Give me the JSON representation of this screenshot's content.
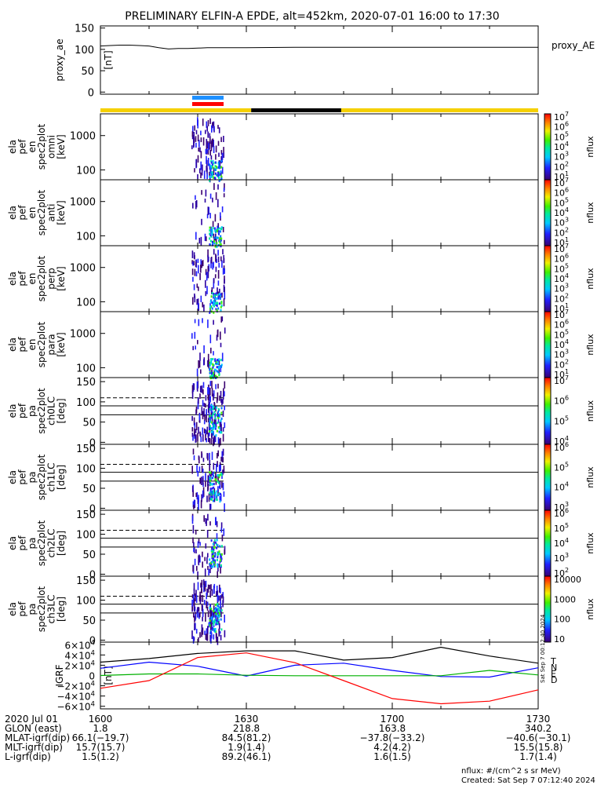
{
  "title": "PRELIMINARY ELFIN-A EPDE, alt=452km, 2020-07-01 16:00 to 17:30",
  "colors": {
    "blue_bar": "#1e90ff",
    "red_bar": "#ff0000",
    "yellow_bar": "#f5d000",
    "night_bar": "#000000",
    "b_total": "#000000",
    "b_n": "#0000ff",
    "b_e": "#00b000",
    "b_d": "#ff0000"
  },
  "chart_data": [
    {
      "type": "line",
      "name_label": [
        "proxy_ae",
        "[nT]"
      ],
      "legend": "proxy_AE",
      "yticks": [
        "150",
        "100",
        "50",
        "0"
      ],
      "ylim": [
        -5,
        155
      ],
      "x_minutes": [
        0,
        2,
        4,
        6,
        8,
        10,
        12,
        14,
        16,
        18,
        20,
        22,
        24,
        30,
        40,
        50,
        60,
        70,
        80,
        90
      ],
      "values": [
        108,
        109,
        110,
        110,
        109,
        108,
        104,
        101,
        102,
        102,
        103,
        104,
        104,
        104,
        105,
        105,
        105,
        105,
        105,
        105
      ]
    },
    {
      "type": "heatmap",
      "name_label": [
        "ela",
        "pef",
        "en",
        "spec2plot",
        "omni",
        "[keV]"
      ],
      "yticks": [
        "1000",
        "100"
      ],
      "cbar_ticks": [
        "10^7",
        "10^6",
        "10^5",
        "10^4",
        "10^3",
        "10^2",
        "10^1"
      ],
      "cbar_label": "nflux"
    },
    {
      "type": "heatmap",
      "name_label": [
        "ela",
        "pef",
        "en",
        "spec2plot",
        "anti",
        "[keV]"
      ],
      "yticks": [
        "1000",
        "100"
      ],
      "cbar_ticks": [
        "10^7",
        "10^6",
        "10^5",
        "10^4",
        "10^3",
        "10^2",
        "10^1"
      ],
      "cbar_label": "nflux"
    },
    {
      "type": "heatmap",
      "name_label": [
        "ela",
        "pef",
        "en",
        "spec2plot",
        "perp",
        "[keV]"
      ],
      "yticks": [
        "1000",
        "100"
      ],
      "cbar_ticks": [
        "10^7",
        "10^6",
        "10^5",
        "10^4",
        "10^3",
        "10^2",
        "10^1"
      ],
      "cbar_label": "nflux"
    },
    {
      "type": "heatmap",
      "name_label": [
        "ela",
        "pef",
        "en",
        "spec2plot",
        "para",
        "[keV]"
      ],
      "yticks": [
        "1000",
        "100"
      ],
      "cbar_ticks": [
        "10^7",
        "10^6",
        "10^5",
        "10^4",
        "10^3",
        "10^2",
        "10^1"
      ],
      "cbar_label": "nflux"
    },
    {
      "type": "heatmap",
      "name_label": [
        "ela",
        "pef",
        "pa",
        "spec2plot",
        "ch0LC",
        "[deg]"
      ],
      "yticks": [
        "150",
        "100",
        "50",
        "0"
      ],
      "cbar_ticks": [
        "10^7",
        "10^6",
        "10^5",
        "10^4"
      ],
      "cbar_label": "nflux"
    },
    {
      "type": "heatmap",
      "name_label": [
        "ela",
        "pef",
        "pa",
        "spec2plot",
        "ch1LC",
        "[deg]"
      ],
      "yticks": [
        "150",
        "100",
        "50",
        "0"
      ],
      "cbar_ticks": [
        "10^6",
        "10^5",
        "10^4",
        "10^3"
      ],
      "cbar_label": "nflux"
    },
    {
      "type": "heatmap",
      "name_label": [
        "ela",
        "pef",
        "pa",
        "spec2plot",
        "ch2LC",
        "[deg]"
      ],
      "yticks": [
        "150",
        "100",
        "50",
        "0"
      ],
      "cbar_ticks": [
        "10^6",
        "10^5",
        "10^4",
        "10^3",
        "10^2"
      ],
      "cbar_label": "nflux"
    },
    {
      "type": "heatmap",
      "name_label": [
        "ela",
        "pef",
        "pa",
        "spec2plot",
        "ch3LC",
        "[deg]"
      ],
      "yticks": [
        "150",
        "100",
        "50",
        "0"
      ],
      "cbar_ticks": [
        "10000",
        "1000",
        "100",
        "10"
      ],
      "cbar_label": "nflux"
    },
    {
      "type": "line",
      "name_label": [
        "IGRF",
        "[nT]"
      ],
      "yticks": [
        "6×10^4",
        "4×10^4",
        "2×10^4",
        "0",
        "−2×10^4",
        "−4×10^4",
        "−6×10^4"
      ],
      "ylim": [
        -65000,
        65000
      ],
      "legend": [
        "T",
        "N",
        "E",
        "D"
      ],
      "x_minutes": [
        0,
        10,
        20,
        30,
        40,
        50,
        60,
        70,
        80,
        90
      ],
      "series": [
        {
          "name": "T",
          "values": [
            26000,
            33000,
            43000,
            48000,
            48000,
            30000,
            35000,
            55000,
            38000,
            24000
          ]
        },
        {
          "name": "N",
          "values": [
            14000,
            26000,
            18000,
            -1000,
            20000,
            24000,
            10000,
            -2000,
            -3000,
            15000
          ]
        },
        {
          "name": "E",
          "values": [
            0,
            3000,
            3000,
            500,
            -400,
            -400,
            -400,
            -400,
            10000,
            1000
          ]
        },
        {
          "name": "D",
          "values": [
            -25000,
            -10000,
            35000,
            44000,
            25000,
            -10000,
            -45000,
            -55000,
            -50000,
            -28000
          ]
        }
      ]
    }
  ],
  "time_axis": {
    "rows": [
      {
        "label": "2020 Jul 01",
        "values": [
          "1600",
          "1630",
          "1700",
          "1730"
        ]
      },
      {
        "label": "GLON (east)",
        "values": [
          "1.8",
          "218.8",
          "163.8",
          "340.2"
        ]
      },
      {
        "label": "MLAT-igrf(dip)",
        "values": [
          "66.1(−19.7)",
          "84.5(81.2)",
          "−37.8(−33.2)",
          "−40.6(−30.1)"
        ]
      },
      {
        "label": "MLT-igrf(dip)",
        "values": [
          "15.7(15.7)",
          "1.9(1.4)",
          "4.2(4.2)",
          "15.5(15.8)"
        ]
      },
      {
        "label": "L-igrf(dip)",
        "values": [
          "1.5(1.2)",
          "89.2(46.1)",
          "1.6(1.5)",
          "1.7(1.4)"
        ]
      }
    ]
  },
  "footer": {
    "units": "nflux: #/(cm^2 s sr MeV)",
    "created": "Created: Sat Sep  7 07:12:40 2024",
    "side_stamp": "Sat Sep  7 00:12:40 2024"
  }
}
